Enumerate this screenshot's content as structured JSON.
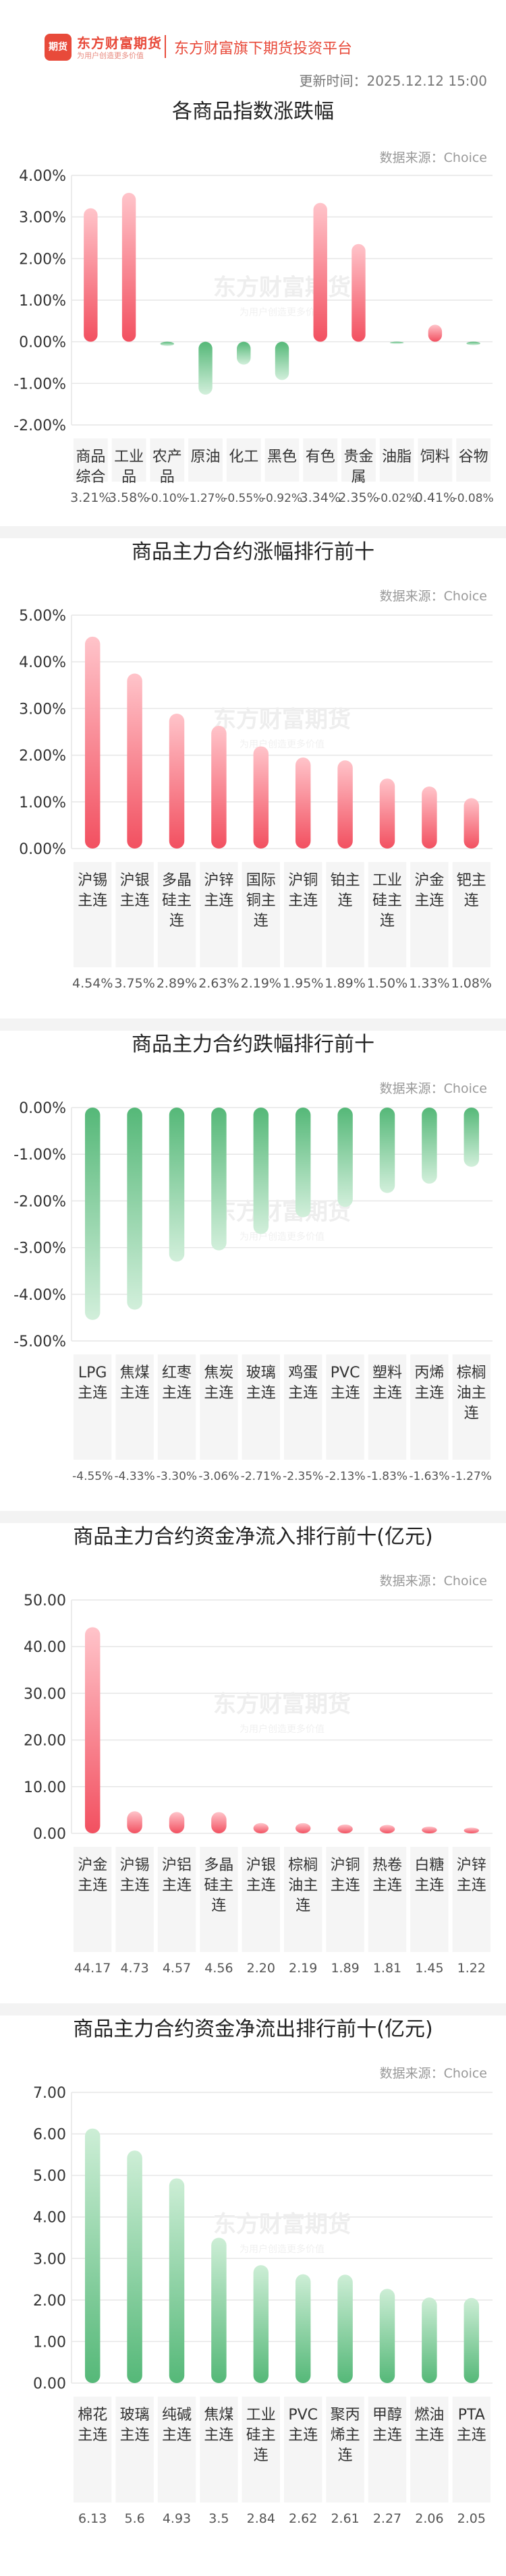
{
  "header": {
    "logo_badge": "期货",
    "logo_name": "东方财富期货",
    "logo_slogan": "为用户创造更多价值",
    "platform": "东方财富旗下期货投资平台",
    "update_time": "更新时间：2025.12.12 15:00"
  },
  "colors": {
    "up": "#f25060",
    "down": "#55b878",
    "grid": "#e6e6e6",
    "axis_text": "#333333",
    "source_text": "#999999"
  },
  "chart_data": [
    {
      "type": "bar",
      "title": "各商品指数涨跌幅",
      "source": "数据来源：Choice",
      "categories": [
        "商品综合",
        "工业品",
        "农产品",
        "原油",
        "化工",
        "黑色",
        "有色",
        "贵金属",
        "油脂",
        "饲料",
        "谷物"
      ],
      "values": [
        3.21,
        3.58,
        -0.1,
        -1.27,
        -0.55,
        -0.92,
        3.34,
        2.35,
        -0.02,
        0.41,
        -0.08
      ],
      "value_labels": [
        "3.21%",
        "3.58%",
        "-0.10%",
        "-1.27%",
        "-0.55%",
        "-0.92%",
        "3.34%",
        "2.35%",
        "-0.02%",
        "0.41%",
        "-0.08%"
      ],
      "ylim": [
        -2,
        4
      ],
      "yticks": [
        -2,
        -1,
        0,
        1,
        2,
        3,
        4
      ],
      "ytick_labels": [
        "-2.00%",
        "-1.00%",
        "0.00%",
        "1.00%",
        "2.00%",
        "3.00%",
        "4.00%"
      ]
    },
    {
      "type": "bar",
      "title": "商品主力合约涨幅排行前十",
      "source": "数据来源：Choice",
      "categories": [
        "沪锡主连",
        "沪银主连",
        "多晶硅主连",
        "沪锌主连",
        "国际铜主连",
        "沪铜主连",
        "铂主连",
        "工业硅主连",
        "沪金主连",
        "钯主连"
      ],
      "values": [
        4.54,
        3.75,
        2.89,
        2.63,
        2.19,
        1.95,
        1.89,
        1.5,
        1.33,
        1.08
      ],
      "value_labels": [
        "4.54%",
        "3.75%",
        "2.89%",
        "2.63%",
        "2.19%",
        "1.95%",
        "1.89%",
        "1.50%",
        "1.33%",
        "1.08%"
      ],
      "ylim": [
        0,
        5
      ],
      "yticks": [
        0,
        1,
        2,
        3,
        4,
        5
      ],
      "ytick_labels": [
        "0.00%",
        "1.00%",
        "2.00%",
        "3.00%",
        "4.00%",
        "5.00%"
      ]
    },
    {
      "type": "bar",
      "title": "商品主力合约跌幅排行前十",
      "source": "数据来源：Choice",
      "categories": [
        "LPG主连",
        "焦煤主连",
        "红枣主连",
        "焦炭主连",
        "玻璃主连",
        "鸡蛋主连",
        "PVC主连",
        "塑料主连",
        "丙烯主连",
        "棕榈油主连"
      ],
      "values": [
        -4.55,
        -4.33,
        -3.3,
        -3.06,
        -2.71,
        -2.35,
        -2.13,
        -1.83,
        -1.63,
        -1.27
      ],
      "value_labels": [
        "-4.55%",
        "-4.33%",
        "-3.30%",
        "-3.06%",
        "-2.71%",
        "-2.35%",
        "-2.13%",
        "-1.83%",
        "-1.63%",
        "-1.27%"
      ],
      "ylim": [
        -5,
        0
      ],
      "yticks": [
        -5,
        -4,
        -3,
        -2,
        -1,
        0
      ],
      "ytick_labels": [
        "-5.00%",
        "-4.00%",
        "-3.00%",
        "-2.00%",
        "-1.00%",
        "0.00%"
      ]
    },
    {
      "type": "bar",
      "title": "商品主力合约资金净流入排行前十(亿元)",
      "source": "数据来源：Choice",
      "categories": [
        "沪金主连",
        "沪锡主连",
        "沪铝主连",
        "多晶硅主连",
        "沪银主连",
        "棕榈油主连",
        "沪铜主连",
        "热卷主连",
        "白糖主连",
        "沪锌主连"
      ],
      "values": [
        44.17,
        4.73,
        4.57,
        4.56,
        2.2,
        2.19,
        1.89,
        1.81,
        1.45,
        1.22
      ],
      "value_labels": [
        "44.17",
        "4.73",
        "4.57",
        "4.56",
        "2.20",
        "2.19",
        "1.89",
        "1.81",
        "1.45",
        "1.22"
      ],
      "ylim": [
        0,
        50
      ],
      "yticks": [
        0,
        10,
        20,
        30,
        40,
        50
      ],
      "ytick_labels": [
        "0.00",
        "10.00",
        "20.00",
        "30.00",
        "40.00",
        "50.00"
      ]
    },
    {
      "type": "bar",
      "title": "商品主力合约资金净流出排行前十(亿元)",
      "source": "数据来源：Choice",
      "categories": [
        "棉花主连",
        "玻璃主连",
        "纯碱主连",
        "焦煤主连",
        "工业硅主连",
        "PVC主连",
        "聚丙烯主连",
        "甲醇主连",
        "燃油主连",
        "PTA主连"
      ],
      "values": [
        6.13,
        5.6,
        4.93,
        3.5,
        2.84,
        2.62,
        2.61,
        2.27,
        2.06,
        2.05
      ],
      "value_labels": [
        "6.13",
        "5.6",
        "4.93",
        "3.5",
        "2.84",
        "2.62",
        "2.61",
        "2.27",
        "2.06",
        "2.05"
      ],
      "ylim": [
        0,
        7
      ],
      "yticks": [
        0,
        1,
        2,
        3,
        4,
        5,
        6,
        7
      ],
      "ytick_labels": [
        "0.00",
        "1.00",
        "2.00",
        "3.00",
        "4.00",
        "5.00",
        "6.00",
        "7.00"
      ],
      "bar_color": "down"
    }
  ]
}
